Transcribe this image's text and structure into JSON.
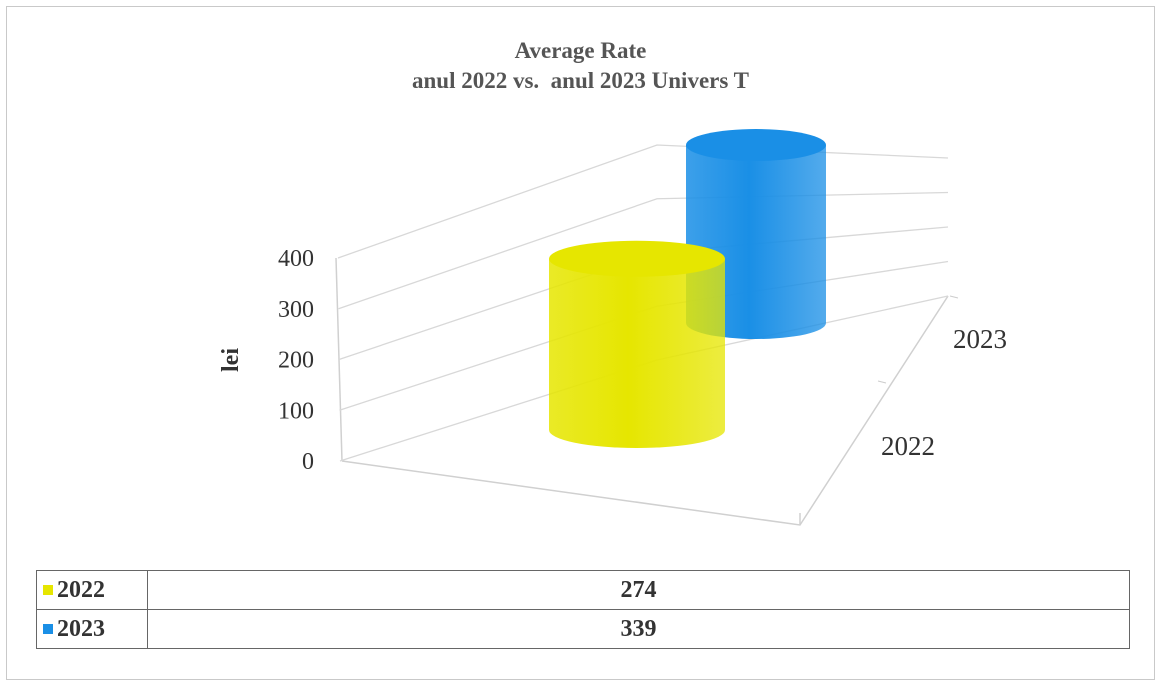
{
  "chart_data": {
    "type": "bar",
    "title": "Average Rate",
    "subtitle": "anul 2022 vs.  anul 2023 Univers T",
    "ylabel": "lei",
    "ylim": [
      0,
      400
    ],
    "yticks": [
      0,
      100,
      200,
      300,
      400
    ],
    "grid": true,
    "legend": "data-table-bottom",
    "style": "3d-cylinder",
    "series": [
      {
        "name": "2022",
        "value": 274,
        "color": "#e6e600"
      },
      {
        "name": "2023",
        "value": 339,
        "color": "#1a8fe6"
      }
    ]
  }
}
